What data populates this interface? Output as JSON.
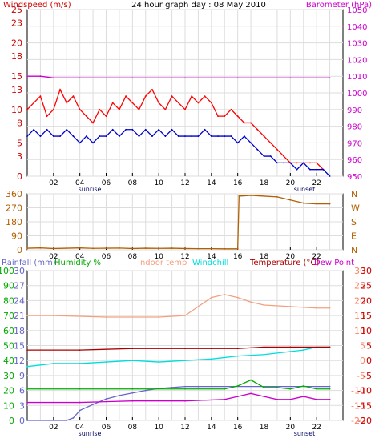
{
  "chart_data": [
    {
      "type": "line",
      "title": "24 hour graph day : 08 May 2010",
      "xlabel": "",
      "x_ticks": [
        "02",
        "04",
        "06",
        "08",
        "10",
        "12",
        "14",
        "16",
        "18",
        "20",
        "22"
      ],
      "x_range": [
        0,
        24
      ],
      "markers": {
        "sunrise": "sunrise",
        "sunset": "sunset"
      },
      "left_axis": {
        "label": "Windspeed (m/s)",
        "ylim": [
          0,
          25
        ],
        "ticks": [
          0,
          3,
          5,
          8,
          10,
          13,
          15,
          18,
          20,
          23,
          25
        ]
      },
      "right_axis": {
        "label": "Barometer (hPa)",
        "ylim": [
          950,
          1050
        ],
        "ticks": [
          950,
          960,
          970,
          980,
          990,
          1000,
          1010,
          1020,
          1030,
          1040,
          1050
        ]
      },
      "series": [
        {
          "name": "Windspeed (m/s)",
          "color": "#ff0000",
          "axis": "left",
          "x": [
            0,
            0.5,
            1,
            1.5,
            2,
            2.5,
            3,
            3.5,
            4,
            4.5,
            5,
            5.5,
            6,
            6.5,
            7,
            7.5,
            8,
            8.5,
            9,
            9.5,
            10,
            10.5,
            11,
            11.5,
            12,
            12.5,
            13,
            13.5,
            14,
            14.5,
            15,
            15.5,
            16,
            16.5,
            17,
            17.5,
            18,
            18.5,
            19,
            19.5,
            20,
            20.5,
            21,
            21.5,
            22,
            22.5
          ],
          "y": [
            10,
            11,
            12,
            9,
            10,
            13,
            11,
            12,
            10,
            9,
            8,
            10,
            9,
            11,
            10,
            12,
            11,
            10,
            12,
            13,
            11,
            10,
            12,
            11,
            10,
            12,
            11,
            12,
            11,
            9,
            9,
            10,
            9,
            8,
            8,
            7,
            6,
            5,
            4,
            3,
            2,
            2,
            2,
            2,
            2,
            1
          ]
        },
        {
          "name": "Gust",
          "color": "#0000cc",
          "axis": "left",
          "x": [
            0,
            0.5,
            1,
            1.5,
            2,
            2.5,
            3,
            3.5,
            4,
            4.5,
            5,
            5.5,
            6,
            6.5,
            7,
            7.5,
            8,
            8.5,
            9,
            9.5,
            10,
            10.5,
            11,
            11.5,
            12,
            12.5,
            13,
            13.5,
            14,
            14.5,
            15,
            15.5,
            16,
            16.5,
            17,
            17.5,
            18,
            18.5,
            19,
            19.5,
            20,
            20.5,
            21,
            21.5,
            22,
            22.5,
            23
          ],
          "y": [
            6,
            7,
            6,
            7,
            6,
            6,
            7,
            6,
            5,
            6,
            5,
            6,
            6,
            7,
            6,
            7,
            7,
            6,
            7,
            6,
            7,
            6,
            7,
            6,
            6,
            6,
            6,
            7,
            6,
            6,
            6,
            6,
            5,
            6,
            5,
            4,
            3,
            3,
            2,
            2,
            2,
            1,
            2,
            1,
            1,
            1,
            0
          ]
        },
        {
          "name": "Barometer (hPa)",
          "color": "#cc00cc",
          "axis": "right",
          "x": [
            0,
            1,
            2,
            4,
            8,
            12,
            16,
            20,
            22,
            23
          ],
          "y": [
            1010,
            1010,
            1009,
            1009,
            1009,
            1009,
            1009,
            1009,
            1009,
            1009
          ]
        }
      ]
    },
    {
      "type": "line",
      "x_ticks": [
        "02",
        "04",
        "06",
        "08",
        "10",
        "12",
        "14",
        "16",
        "18",
        "20",
        "22"
      ],
      "left_axis": {
        "label": "",
        "ylim": [
          0,
          360
        ],
        "ticks": [
          0,
          90,
          180,
          270,
          360
        ]
      },
      "right_axis": {
        "label": "",
        "ticks": [
          "N",
          "E",
          "S",
          "W",
          "N"
        ]
      },
      "series": [
        {
          "name": "Wind direction",
          "color": "#b06000",
          "x": [
            0,
            1,
            2,
            3,
            4,
            5,
            6,
            7,
            8,
            9,
            10,
            11,
            12,
            13,
            14,
            15,
            16,
            16.1,
            17,
            18,
            19,
            20,
            21,
            22,
            23
          ],
          "y": [
            10,
            12,
            8,
            10,
            12,
            9,
            10,
            11,
            8,
            10,
            9,
            10,
            8,
            7,
            7,
            6,
            6,
            345,
            350,
            345,
            340,
            320,
            300,
            295,
            295
          ]
        }
      ]
    },
    {
      "type": "line",
      "x_ticks": [
        "02",
        "04",
        "06",
        "08",
        "10",
        "12",
        "14",
        "16",
        "18",
        "20",
        "22"
      ],
      "markers": {
        "sunrise": "sunrise",
        "sunset": "sunset"
      },
      "axes": {
        "humidity": {
          "label": "Humidity %",
          "ylim": [
            0,
            100
          ],
          "ticks": [
            0,
            10,
            20,
            30,
            40,
            50,
            60,
            70,
            80,
            90,
            100
          ]
        },
        "rainfall": {
          "label": "Rainfall (mm)",
          "ylim": [
            0,
            30
          ],
          "ticks": [
            0,
            3,
            6,
            9,
            12,
            15,
            18,
            21,
            24,
            27,
            30
          ]
        },
        "temperature": {
          "label": "Temperature (°C)",
          "ylim": [
            -20,
            30
          ],
          "ticks": [
            -20,
            -15,
            -10,
            -5,
            0,
            5,
            10,
            15,
            20,
            25,
            30
          ]
        }
      },
      "legend_labels": [
        "Rainfall (mm)",
        "Humidity %",
        "Indoor temp",
        "Windchill",
        "Temperature (°C)",
        "Dew Point"
      ],
      "series": [
        {
          "name": "Rainfall (mm)",
          "color": "#6666cc",
          "axis": "rainfall",
          "x": [
            0,
            3,
            3.5,
            4,
            5,
            6,
            7,
            8,
            9,
            10,
            11,
            12,
            13,
            23
          ],
          "y": [
            0,
            0,
            0.5,
            2,
            3.2,
            4.3,
            5.0,
            5.5,
            6.0,
            6.4,
            6.6,
            6.8,
            6.8,
            6.8
          ]
        },
        {
          "name": "Humidity %",
          "color": "#00aa00",
          "axis": "humidity",
          "x": [
            0,
            4,
            8,
            12,
            15,
            16,
            17,
            18,
            19,
            20,
            21,
            22,
            23
          ],
          "y": [
            21,
            21,
            21,
            21,
            21,
            23,
            27,
            22,
            22,
            21,
            23,
            21,
            21
          ]
        },
        {
          "name": "Indoor temp",
          "color": "#f4a080",
          "axis": "temperature",
          "x": [
            0,
            2,
            6,
            10,
            12,
            13,
            14,
            15,
            16,
            17,
            18,
            20,
            22,
            23
          ],
          "y": [
            15,
            15,
            14.5,
            14.5,
            15,
            18,
            21,
            22,
            21,
            19.5,
            18.5,
            18,
            17.5,
            17.5
          ]
        },
        {
          "name": "Windchill",
          "color": "#00dddd",
          "axis": "temperature",
          "x": [
            0,
            2,
            4,
            6,
            8,
            10,
            12,
            14,
            16,
            18,
            20,
            21,
            22,
            23
          ],
          "y": [
            -2,
            -1,
            -1,
            -0.5,
            0,
            -0.5,
            0,
            0.5,
            1.5,
            2,
            3,
            3.5,
            4.5,
            4.5
          ]
        },
        {
          "name": "Temperature (°C)",
          "color": "#aa0000",
          "axis": "temperature",
          "x": [
            0,
            4,
            8,
            12,
            14,
            16,
            18,
            20,
            22,
            23
          ],
          "y": [
            3.5,
            3.5,
            4,
            4,
            4,
            4,
            4.5,
            4.5,
            4.5,
            4.5
          ]
        },
        {
          "name": "Dew Point",
          "color": "#cc00cc",
          "axis": "temperature",
          "x": [
            0,
            4,
            8,
            12,
            15,
            16,
            17,
            18,
            19,
            20,
            21,
            22,
            23
          ],
          "y": [
            -14,
            -14,
            -13.5,
            -13.5,
            -13,
            -12,
            -11,
            -12,
            -13,
            -13,
            -12,
            -13,
            -13
          ]
        }
      ]
    }
  ]
}
